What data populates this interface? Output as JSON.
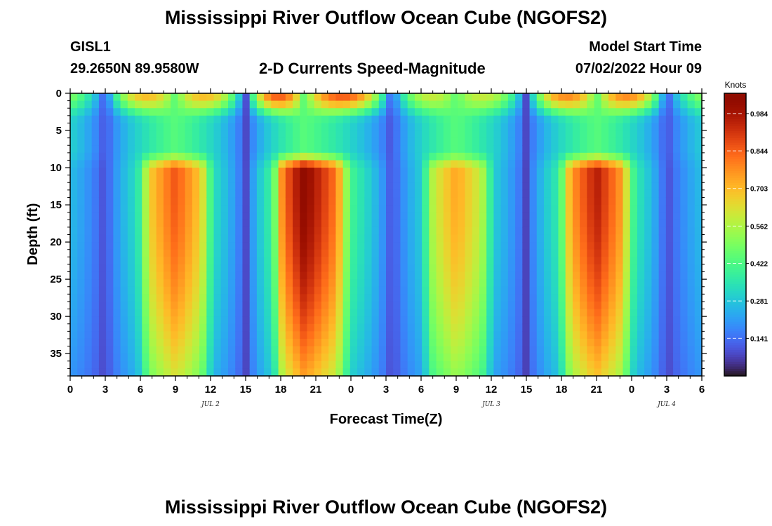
{
  "page": {
    "title": "Mississippi River Outflow Ocean Cube (NGOFS2)",
    "title_repeat": "Mississippi River Outflow Ocean Cube (NGOFS2)",
    "station": "GISL1",
    "coords": "29.2650N  89.9580W",
    "subtitle": "2-D Currents Speed-Magnitude",
    "model_start_label": "Model Start Time",
    "model_start_value": "07/02/2022 Hour 09"
  },
  "chart_data": {
    "type": "heatmap",
    "title": "2-D Currents Speed-Magnitude",
    "xlabel": "Forecast Time(Z)",
    "ylabel": "Depth (ft)",
    "x_ticks": [
      "0",
      "3",
      "6",
      "9",
      "12",
      "15",
      "18",
      "21",
      "0",
      "3",
      "6",
      "9",
      "12",
      "15",
      "18",
      "21",
      "0",
      "3",
      "6"
    ],
    "x_range_hours": [
      0,
      54
    ],
    "date_labels": [
      {
        "label": "JUL 2",
        "hour": 12
      },
      {
        "label": "JUL 3",
        "hour": 36
      },
      {
        "label": "JUL 4",
        "hour": 51
      }
    ],
    "y_ticks": [
      0,
      5,
      10,
      15,
      20,
      25,
      30,
      35
    ],
    "y_range": [
      0,
      38
    ],
    "y_inverted": true,
    "colorbar": {
      "unit": "Knots",
      "min": 0,
      "max": 1.06,
      "ticks": [
        "0.141",
        "0.281",
        "0.422",
        "0.562",
        "0.703",
        "0.844",
        "0.984"
      ],
      "colormap": "turbo"
    },
    "minima_hours": [
      3,
      15,
      27.5,
      39,
      51
    ],
    "maxima_hours": [
      9,
      20,
      33,
      45
    ],
    "peak_speed_by_cycle": [
      0.86,
      1.04,
      0.74,
      0.96
    ]
  }
}
